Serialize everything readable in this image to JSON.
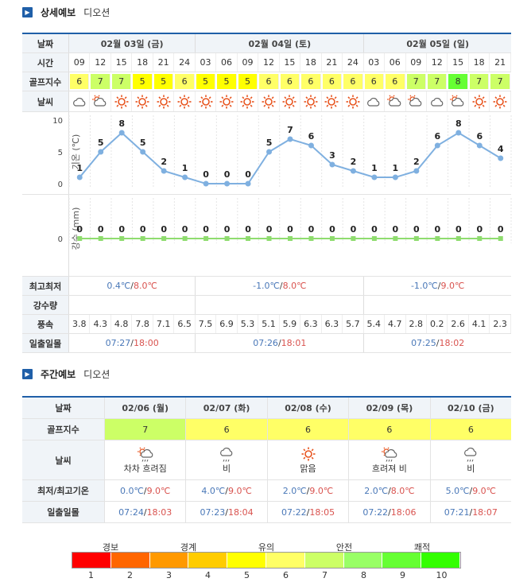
{
  "detail": {
    "section_title": "상세예보",
    "location": "디오션",
    "label_date": "날짜",
    "label_time": "시간",
    "label_golf": "골프지수",
    "label_weather": "날씨",
    "label_temp_axis": "기온 (℃)",
    "label_rain_axis": "강수 (mm)",
    "label_minmax": "최고최저",
    "label_precip": "강수량",
    "label_wind": "풍속",
    "label_sun": "일출일몰",
    "days": [
      {
        "label": "02월 03일 (금)",
        "span": 6,
        "min": "0.4℃",
        "max": "8.0℃",
        "sunrise": "07:27",
        "sunset": "18:00"
      },
      {
        "label": "02월 04일 (토)",
        "span": 8,
        "min": "-1.0℃",
        "max": "8.0℃",
        "sunrise": "07:26",
        "sunset": "18:01"
      },
      {
        "label": "02월 05일 (일)",
        "span": 7,
        "min": "-1.0℃",
        "max": "9.0℃",
        "sunrise": "07:25",
        "sunset": "18:02"
      }
    ],
    "times": [
      "09",
      "12",
      "15",
      "18",
      "21",
      "24",
      "03",
      "06",
      "09",
      "12",
      "15",
      "18",
      "21",
      "24",
      "03",
      "06",
      "09",
      "12",
      "15",
      "18",
      "21"
    ],
    "golf": [
      6,
      7,
      7,
      5,
      5,
      6,
      5,
      5,
      5,
      6,
      6,
      6,
      6,
      6,
      6,
      6,
      7,
      7,
      8,
      7,
      7
    ],
    "weather_icons": [
      "cloud-icon",
      "partly-cloudy-icon",
      "sun-icon",
      "sun-icon",
      "sun-icon",
      "sun-icon",
      "sun-icon",
      "sun-icon",
      "sun-icon",
      "sun-icon",
      "sun-icon",
      "sun-icon",
      "sun-icon",
      "sun-icon",
      "cloud-icon",
      "partly-cloudy-icon",
      "partly-cloudy-icon",
      "cloud-icon",
      "partly-cloudy-icon",
      "sun-icon",
      "sun-icon"
    ],
    "wind": [
      "3.8",
      "4.3",
      "4.8",
      "7.8",
      "7.1",
      "6.5",
      "7.5",
      "6.9",
      "5.3",
      "5.1",
      "5.9",
      "6.3",
      "6.3",
      "5.7",
      "5.4",
      "4.7",
      "2.8",
      "0.2",
      "2.6",
      "4.1",
      "2.3"
    ],
    "golf_colors": {
      "5": "#ffff00",
      "6": "#ffff66",
      "7": "#ccff66",
      "8": "#66ff33"
    }
  },
  "chart_data": [
    {
      "type": "line",
      "title": "",
      "ylabel": "기온 (℃)",
      "ylim": [
        0,
        10
      ],
      "yticks": [
        0,
        5,
        10
      ],
      "x": [
        "09",
        "12",
        "15",
        "18",
        "21",
        "24",
        "03",
        "06",
        "09",
        "12",
        "15",
        "18",
        "21",
        "24",
        "03",
        "06",
        "09",
        "12",
        "15",
        "18",
        "21"
      ],
      "values": [
        1,
        5,
        8,
        5,
        2,
        1,
        0,
        0,
        0,
        5,
        7,
        6,
        3,
        2,
        1,
        1,
        2,
        6,
        8,
        6,
        4
      ],
      "color": "#7fb0e0"
    },
    {
      "type": "line",
      "title": "",
      "ylabel": "강수 (mm)",
      "yticks": [
        0
      ],
      "x": [
        "09",
        "12",
        "15",
        "18",
        "21",
        "24",
        "03",
        "06",
        "09",
        "12",
        "15",
        "18",
        "21",
        "24",
        "03",
        "06",
        "09",
        "12",
        "15",
        "18",
        "21"
      ],
      "values": [
        0,
        0,
        0,
        0,
        0,
        0,
        0,
        0,
        0,
        0,
        0,
        0,
        0,
        0,
        0,
        0,
        0,
        0,
        0,
        0,
        0
      ],
      "color": "#8fdc6f"
    }
  ],
  "weekly": {
    "section_title": "주간예보",
    "location": "디오션",
    "label_date": "날짜",
    "label_golf": "골프지수",
    "label_weather": "날씨",
    "label_temp": "최저/최고기온",
    "label_sun": "일출일몰",
    "days": [
      {
        "date": "02/06 (월)",
        "golf": "7",
        "golf_color": "#ccff66",
        "icon": "rain-cloud-sun-icon",
        "weather": "차차 흐려짐",
        "min": "0.0℃",
        "max": "9.0℃",
        "sunrise": "07:24",
        "sunset": "18:03"
      },
      {
        "date": "02/07 (화)",
        "golf": "6",
        "golf_color": "#ffff66",
        "icon": "rain-cloud-icon",
        "weather": "비",
        "min": "4.0℃",
        "max": "9.0℃",
        "sunrise": "07:23",
        "sunset": "18:04"
      },
      {
        "date": "02/08 (수)",
        "golf": "6",
        "golf_color": "#ffff66",
        "icon": "sun-icon",
        "weather": "맑음",
        "min": "2.0℃",
        "max": "9.0℃",
        "sunrise": "07:22",
        "sunset": "18:05"
      },
      {
        "date": "02/09 (목)",
        "golf": "6",
        "golf_color": "#ffff66",
        "icon": "rain-cloud-sun-icon",
        "weather": "흐려져 비",
        "min": "2.0℃",
        "max": "8.0℃",
        "sunrise": "07:22",
        "sunset": "18:06"
      },
      {
        "date": "02/10 (금)",
        "golf": "6",
        "golf_color": "#ffff66",
        "icon": "rain-cloud-icon",
        "weather": "비",
        "min": "5.0℃",
        "max": "9.0℃",
        "sunrise": "07:21",
        "sunset": "18:07"
      }
    ]
  },
  "legend": {
    "labels": [
      "경보",
      "경계",
      "유의",
      "안전",
      "쾌적"
    ],
    "numbers": [
      "1",
      "2",
      "3",
      "4",
      "5",
      "6",
      "7",
      "8",
      "9",
      "10"
    ],
    "colors": [
      "#ff0000",
      "#ff6600",
      "#ff9900",
      "#ffcc00",
      "#ffff00",
      "#ffff66",
      "#ccff66",
      "#99ff66",
      "#66ff33",
      "#33ff00"
    ]
  }
}
